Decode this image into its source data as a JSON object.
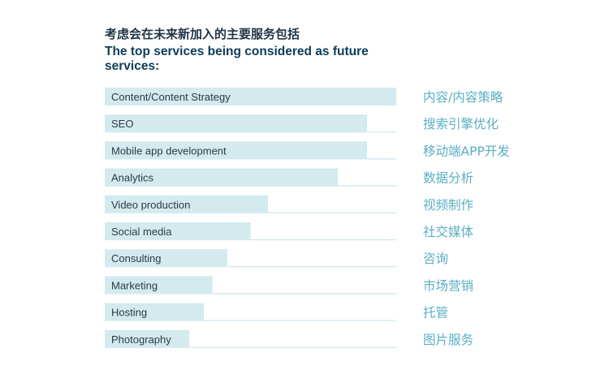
{
  "title_cn": "考虑会在未来新加入的主要服务包括",
  "title_en": "The top services being considered as future services:",
  "colors": {
    "bar": "#d3ebef",
    "baseline": "#cfe6ec",
    "label": "#2b3a46",
    "label_cn": "#5aaec3",
    "title": "#0d3c58"
  },
  "chart_data": {
    "type": "bar",
    "orientation": "horizontal",
    "title": "The top services being considered as future services:",
    "subtitle": "考虑会在未来新加入的主要服务包括",
    "xlabel": "",
    "ylabel": "",
    "xlim": [
      0,
      100
    ],
    "grid": false,
    "categories": [
      "Content/Content Strategy",
      "SEO",
      "Mobile app development",
      "Analytics",
      "Video production",
      "Social media",
      "Consulting",
      "Marketing",
      "Hosting",
      "Photography"
    ],
    "categories_cn": [
      "内容/内容策略",
      "搜索引擎优化",
      "移动端APP开发",
      "数据分析",
      "视频制作",
      "社交媒体",
      "咨询",
      "市场营销",
      "托管",
      "图片服务"
    ],
    "values": [
      100,
      90,
      90,
      80,
      56,
      50,
      42,
      37,
      34,
      29
    ]
  }
}
